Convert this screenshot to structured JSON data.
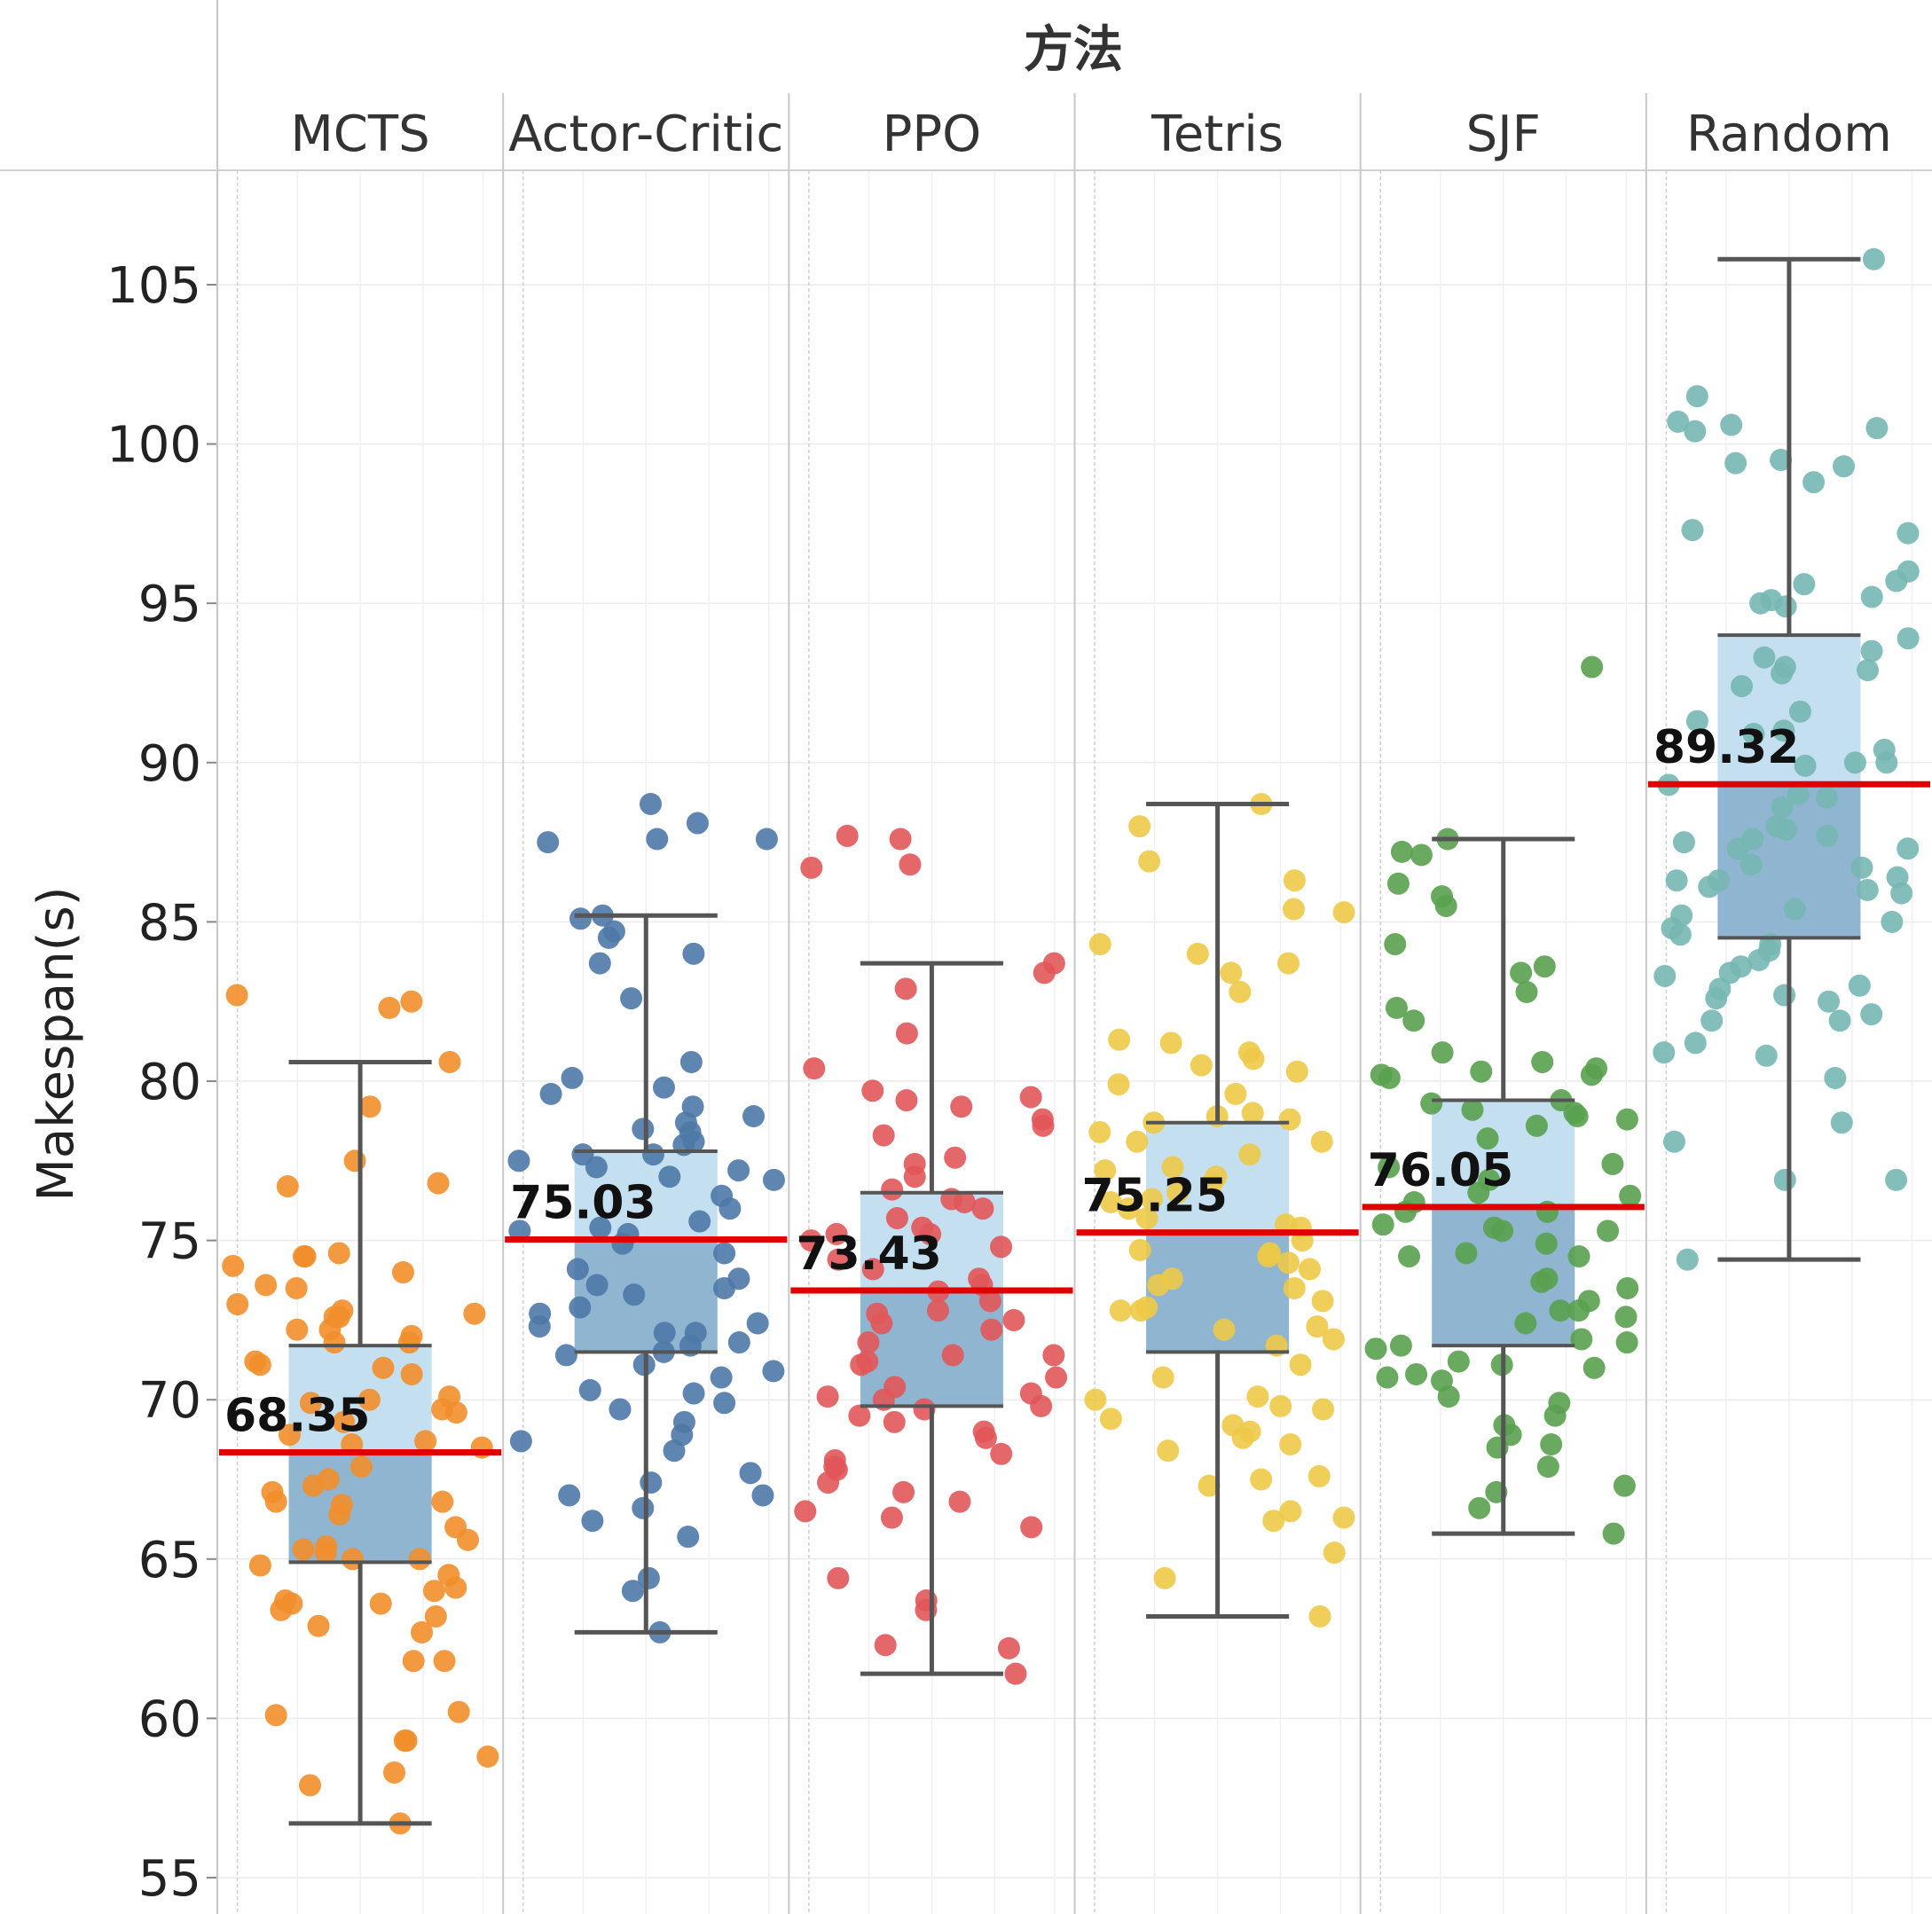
{
  "chart_data": {
    "type": "box",
    "header": "方法",
    "ylabel": "Makespan(s)",
    "ylim": [
      54.5,
      108.5
    ],
    "yticks": [
      55,
      60,
      65,
      70,
      75,
      80,
      85,
      90,
      95,
      100,
      105
    ],
    "grid": true,
    "box_color": "#8fb5d1",
    "box_upper_color": "#c3dff0",
    "whisker_color": "#555555",
    "mean_line_color": "#e00000",
    "categories": [
      {
        "name": "MCTS",
        "color": "#f28e2b",
        "min": 56.7,
        "q1": 64.9,
        "median": 68.3,
        "q3": 71.7,
        "max": 80.6,
        "mean": 68.35,
        "mean_label": "68.35",
        "points": [
          56.7,
          57.9,
          58.3,
          58.8,
          59.3,
          59.3,
          60.1,
          60.2,
          61.8,
          61.8,
          62.7,
          62.9,
          63.2,
          63.4,
          63.6,
          63.6,
          63.7,
          64.0,
          64.1,
          64.5,
          64.8,
          65.0,
          65.0,
          65.2,
          65.3,
          65.4,
          65.6,
          66.0,
          66.4,
          66.7,
          66.8,
          66.8,
          67.1,
          67.3,
          67.5,
          67.9,
          68.5,
          68.6,
          68.7,
          68.9,
          69.3,
          69.6,
          69.7,
          69.9,
          70.0,
          70.1,
          70.8,
          71.1,
          71.0,
          71.2,
          71.8,
          71.8,
          72.0,
          72.2,
          72.2,
          72.6,
          72.6,
          72.7,
          72.8,
          73.0,
          73.5,
          73.6,
          74.0,
          74.2,
          74.5,
          74.5,
          74.6,
          76.7,
          76.8,
          77.5,
          79.2,
          80.6,
          82.3,
          82.5,
          82.7
        ]
      },
      {
        "name": "Actor-Critic",
        "color": "#4e79a7",
        "min": 62.7,
        "q1": 71.5,
        "median": 75.0,
        "q3": 77.8,
        "max": 85.2,
        "mean": 75.03,
        "mean_label": "75.03",
        "points": [
          62.7,
          64.0,
          64.4,
          65.7,
          66.2,
          66.6,
          67.0,
          67.0,
          67.4,
          67.7,
          68.4,
          68.7,
          68.9,
          69.3,
          69.7,
          69.9,
          70.2,
          70.3,
          70.7,
          70.9,
          71.1,
          71.4,
          71.5,
          71.7,
          71.8,
          72.1,
          72.1,
          72.3,
          72.4,
          72.7,
          72.9,
          73.3,
          73.5,
          73.6,
          73.8,
          74.1,
          74.6,
          74.9,
          75.2,
          75.3,
          75.4,
          75.6,
          76.0,
          76.4,
          76.9,
          77.0,
          77.2,
          77.3,
          77.5,
          77.7,
          77.7,
          78.0,
          78.1,
          78.4,
          78.5,
          78.7,
          78.9,
          79.2,
          79.6,
          79.8,
          80.1,
          80.6,
          82.6,
          83.7,
          84.0,
          84.5,
          84.7,
          85.1,
          85.2,
          87.5,
          87.6,
          87.6,
          88.1,
          88.7
        ]
      },
      {
        "name": "PPO",
        "color": "#e15759",
        "min": 61.4,
        "q1": 69.8,
        "median": 73.4,
        "q3": 76.5,
        "max": 83.7,
        "mean": 73.43,
        "mean_label": "73.43",
        "points": [
          61.4,
          62.2,
          62.3,
          63.4,
          63.7,
          64.4,
          66.0,
          66.3,
          66.5,
          66.8,
          67.1,
          67.4,
          67.8,
          67.9,
          68.1,
          68.3,
          68.8,
          69.0,
          69.3,
          69.5,
          69.7,
          69.8,
          70.0,
          70.1,
          70.2,
          70.4,
          70.7,
          71.1,
          71.2,
          71.4,
          71.4,
          71.8,
          72.2,
          72.4,
          72.5,
          72.7,
          72.8,
          73.1,
          73.4,
          73.6,
          73.8,
          74.1,
          74.4,
          74.8,
          75.0,
          75.2,
          75.2,
          75.4,
          75.7,
          76.0,
          76.2,
          76.3,
          76.6,
          77.0,
          77.4,
          77.6,
          78.3,
          78.6,
          78.8,
          79.2,
          79.4,
          79.5,
          79.7,
          80.4,
          81.5,
          82.9,
          83.4,
          83.7,
          86.7,
          86.8,
          87.6,
          87.7
        ]
      },
      {
        "name": "Tetris",
        "color": "#edc948",
        "min": 63.2,
        "q1": 71.5,
        "median": 75.3,
        "q3": 78.7,
        "max": 88.7,
        "mean": 75.25,
        "mean_label": "75.25",
        "points": [
          63.2,
          64.4,
          65.2,
          66.2,
          66.3,
          66.5,
          67.3,
          67.5,
          67.6,
          68.4,
          68.6,
          68.8,
          69.0,
          69.2,
          69.4,
          69.7,
          69.8,
          70.0,
          70.1,
          70.7,
          71.1,
          71.7,
          71.9,
          72.2,
          72.3,
          72.8,
          72.8,
          72.9,
          73.1,
          73.5,
          73.6,
          73.8,
          74.1,
          74.3,
          74.5,
          74.6,
          74.7,
          75.0,
          75.4,
          75.5,
          75.7,
          76.0,
          76.2,
          76.3,
          76.5,
          76.8,
          77.0,
          77.2,
          77.3,
          77.7,
          78.1,
          78.1,
          78.4,
          78.7,
          78.8,
          78.9,
          79.0,
          79.6,
          79.9,
          80.3,
          80.5,
          80.7,
          80.9,
          81.2,
          81.3,
          82.8,
          83.4,
          83.7,
          84.0,
          84.3,
          85.3,
          85.4,
          86.3,
          86.9,
          88.0,
          88.7
        ]
      },
      {
        "name": "SJF",
        "color": "#59a14f",
        "min": 65.8,
        "q1": 71.7,
        "median": 76.0,
        "q3": 79.4,
        "max": 87.6,
        "mean": 76.05,
        "mean_label": "76.05",
        "points": [
          65.8,
          66.6,
          67.1,
          67.3,
          67.9,
          68.5,
          68.6,
          68.9,
          69.2,
          69.5,
          69.9,
          70.1,
          70.6,
          70.7,
          70.8,
          71.0,
          71.1,
          71.2,
          71.6,
          71.7,
          71.8,
          71.9,
          72.4,
          72.6,
          72.8,
          72.8,
          73.1,
          73.5,
          73.7,
          73.8,
          74.5,
          74.5,
          74.6,
          74.9,
          75.3,
          75.3,
          75.4,
          75.5,
          75.9,
          75.9,
          76.2,
          76.4,
          76.5,
          76.9,
          77.3,
          77.4,
          78.2,
          78.6,
          78.8,
          78.9,
          79.0,
          79.1,
          79.3,
          79.4,
          80.1,
          80.2,
          80.2,
          80.3,
          80.4,
          80.6,
          80.9,
          81.9,
          82.3,
          82.8,
          83.4,
          83.6,
          84.3,
          85.5,
          85.8,
          86.2,
          87.1,
          87.2,
          87.6,
          93.0
        ]
      },
      {
        "name": "Random",
        "color": "#76b7b2",
        "min": 74.4,
        "q1": 84.5,
        "median": 89.3,
        "q3": 94.0,
        "max": 105.8,
        "mean": 89.32,
        "mean_label": "89.32",
        "points": [
          74.4,
          76.9,
          76.9,
          78.1,
          78.7,
          80.1,
          80.8,
          80.9,
          81.2,
          81.9,
          81.9,
          82.1,
          82.5,
          82.6,
          82.7,
          82.9,
          83.0,
          83.3,
          83.4,
          83.6,
          83.8,
          84.1,
          84.3,
          84.6,
          84.8,
          85.0,
          85.2,
          85.4,
          85.9,
          86.0,
          86.1,
          86.3,
          86.3,
          86.4,
          86.7,
          86.8,
          87.3,
          87.3,
          87.5,
          87.6,
          87.7,
          87.9,
          88.0,
          88.6,
          88.9,
          89.0,
          89.3,
          89.9,
          90.0,
          90.0,
          90.4,
          90.9,
          91.0,
          91.3,
          91.6,
          92.4,
          92.8,
          92.9,
          93.0,
          93.3,
          93.5,
          93.9,
          94.9,
          95.0,
          95.1,
          95.2,
          95.6,
          95.7,
          96.0,
          97.2,
          97.3,
          98.8,
          99.3,
          99.4,
          99.5,
          100.4,
          100.5,
          100.6,
          100.7,
          101.5,
          105.8
        ]
      }
    ]
  }
}
